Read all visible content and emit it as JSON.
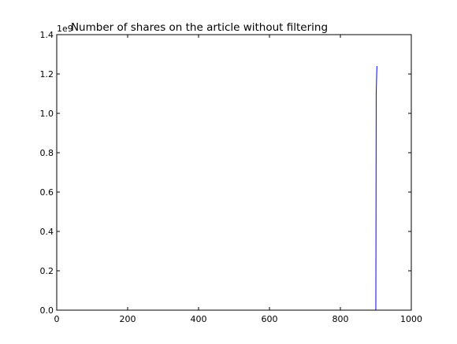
{
  "chart_data": {
    "type": "line",
    "title": "Number of shares on the article without filtering",
    "xlabel": "",
    "ylabel": "",
    "xlim": [
      0,
      1000
    ],
    "ylim": [
      0,
      1.4
    ],
    "y_offset_label": "1e9",
    "x_ticks": [
      0,
      200,
      400,
      600,
      800,
      1000
    ],
    "y_ticks": [
      0.0,
      0.2,
      0.4,
      0.6,
      0.8,
      1.0,
      1.2,
      1.4
    ],
    "x_tick_labels": [
      "0",
      "200",
      "400",
      "600",
      "800",
      "1000"
    ],
    "y_tick_labels": [
      "0.0",
      "0.2",
      "0.4",
      "0.6",
      "0.8",
      "1.0",
      "1.2",
      "1.4"
    ],
    "grid": false,
    "legend": "none",
    "series": [
      {
        "color": "#0000ff",
        "x": [
          0,
          100,
          200,
          300,
          400,
          500,
          600,
          700,
          800,
          899,
          900,
          901,
          903
        ],
        "y": [
          0,
          0,
          0,
          0,
          0,
          0,
          0,
          0,
          0,
          0,
          0.005,
          1.1,
          1.24
        ]
      }
    ]
  }
}
